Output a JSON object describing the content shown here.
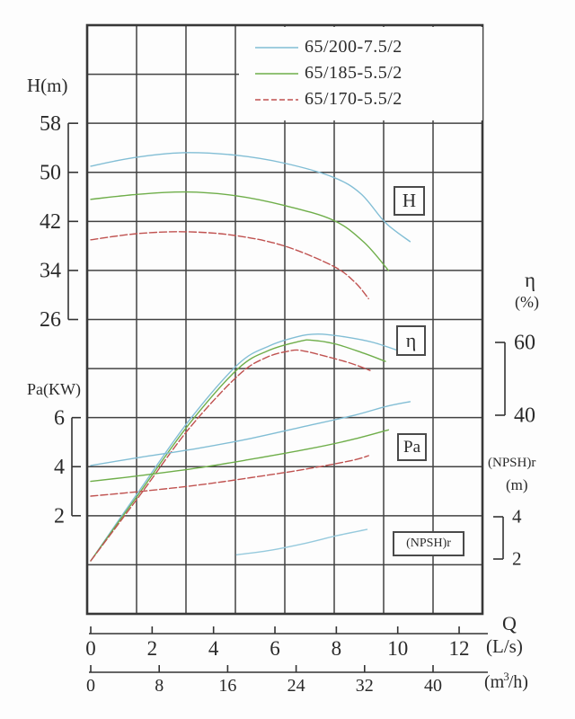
{
  "chart_data": {
    "type": "line",
    "title": "",
    "legend": [
      {
        "label": "65/200-7.5/2",
        "color": "#82bed5",
        "line_style": "solid"
      },
      {
        "label": "65/185-5.5/2",
        "color": "#6fae4a",
        "line_style": "solid"
      },
      {
        "label": "65/170-5.5/2",
        "color": "#c05250",
        "line_style": "dashed"
      }
    ],
    "x_axis": {
      "title": "Q",
      "unit": "(L/s)",
      "ticks": [
        0,
        2,
        4,
        6,
        8,
        10,
        12
      ],
      "range": [
        0,
        12.9
      ]
    },
    "x_axis_secondary": {
      "unit_open": "(m",
      "unit_sup": "3",
      "unit_close": "/h)",
      "ticks": [
        0,
        8,
        16,
        24,
        32,
        40
      ],
      "range": [
        0,
        46.4
      ]
    },
    "y_axes": {
      "H": {
        "title": "H(m)",
        "ticks": [
          58,
          50,
          42,
          34,
          26
        ]
      },
      "Pa": {
        "title": "Pa(KW)",
        "ticks": [
          6,
          4,
          2
        ]
      },
      "eta": {
        "title": "η",
        "unit": "(%)",
        "ticks": [
          60,
          40
        ]
      },
      "npsh": {
        "title": "(NPSH)r",
        "unit": "(m)",
        "ticks": [
          4,
          2
        ]
      }
    },
    "curve_labels": {
      "H": "H",
      "eta": "η",
      "Pa": "Pa",
      "npsh": "(NPSH)r"
    },
    "grid": {
      "columns": 8,
      "rows": 12,
      "on": true
    },
    "series": [
      {
        "name": "H 65/200-7.5/2",
        "pump": "65/200-7.5/2",
        "axis": "H",
        "color": "#82bed5",
        "dash": "solid",
        "points": [
          [
            0,
            51.0
          ],
          [
            1.4,
            52.4
          ],
          [
            3.0,
            53.2
          ],
          [
            4.7,
            52.8
          ],
          [
            6.3,
            51.5
          ],
          [
            7.9,
            49.2
          ],
          [
            8.8,
            46.5
          ],
          [
            9.6,
            41.8
          ],
          [
            10.4,
            38.7
          ]
        ]
      },
      {
        "name": "H 65/185-5.5/2",
        "pump": "65/185-5.5/2",
        "axis": "H",
        "color": "#6fae4a",
        "dash": "solid",
        "points": [
          [
            0,
            45.6
          ],
          [
            1.5,
            46.4
          ],
          [
            3.1,
            46.8
          ],
          [
            4.7,
            46.2
          ],
          [
            6.3,
            44.6
          ],
          [
            7.9,
            42.2
          ],
          [
            8.9,
            38.6
          ],
          [
            9.7,
            34.0
          ]
        ]
      },
      {
        "name": "H 65/170-5.5/2",
        "pump": "65/170-5.5/2",
        "axis": "H",
        "color": "#c05250",
        "dash": "dashed",
        "points": [
          [
            0,
            39.0
          ],
          [
            1.5,
            40.0
          ],
          [
            3.1,
            40.3
          ],
          [
            4.7,
            39.7
          ],
          [
            6.3,
            38.0
          ],
          [
            7.9,
            34.7
          ],
          [
            8.6,
            32.1
          ],
          [
            9.05,
            29.4
          ]
        ]
      },
      {
        "name": "η 65/200-7.5/2",
        "pump": "65/200-7.5/2",
        "axis": "eta",
        "color": "#82bed5",
        "dash": "solid",
        "points": [
          [
            0,
            0
          ],
          [
            1.6,
            19.5
          ],
          [
            3.2,
            38.5
          ],
          [
            4.8,
            54.0
          ],
          [
            5.8,
            59.0
          ],
          [
            6.7,
            61.5
          ],
          [
            7.4,
            62.3
          ],
          [
            8.3,
            61.5
          ],
          [
            9.2,
            60.0
          ],
          [
            10.2,
            57.2
          ]
        ]
      },
      {
        "name": "η 65/185-5.5/2",
        "pump": "65/185-5.5/2",
        "axis": "eta",
        "color": "#6fae4a",
        "dash": "solid",
        "points": [
          [
            0,
            0
          ],
          [
            1.6,
            18.8
          ],
          [
            3.2,
            37.5
          ],
          [
            4.8,
            52.8
          ],
          [
            5.8,
            57.8
          ],
          [
            6.8,
            60.3
          ],
          [
            7.2,
            60.6
          ],
          [
            8.0,
            59.5
          ],
          [
            8.9,
            57.0
          ],
          [
            9.6,
            54.8
          ]
        ]
      },
      {
        "name": "η 65/170-5.5/2",
        "pump": "65/170-5.5/2",
        "axis": "eta",
        "color": "#c05250",
        "dash": "dashed",
        "points": [
          [
            0,
            0
          ],
          [
            1.6,
            18.0
          ],
          [
            3.2,
            36.3
          ],
          [
            4.8,
            50.9
          ],
          [
            5.7,
            55.8
          ],
          [
            6.5,
            57.7
          ],
          [
            6.9,
            57.7
          ],
          [
            7.7,
            56.1
          ],
          [
            8.5,
            54.2
          ],
          [
            9.1,
            52.3
          ]
        ]
      },
      {
        "name": "Pa 65/200-7.5/2",
        "pump": "65/200-7.5/2",
        "axis": "Pa",
        "color": "#82bed5",
        "dash": "solid",
        "points": [
          [
            0,
            4.05
          ],
          [
            1.7,
            4.4
          ],
          [
            3.5,
            4.75
          ],
          [
            5.2,
            5.15
          ],
          [
            7.0,
            5.65
          ],
          [
            8.6,
            6.1
          ],
          [
            9.6,
            6.45
          ],
          [
            10.4,
            6.65
          ]
        ]
      },
      {
        "name": "Pa 65/185-5.5/2",
        "pump": "65/185-5.5/2",
        "axis": "Pa",
        "color": "#6fae4a",
        "dash": "solid",
        "points": [
          [
            0,
            3.4
          ],
          [
            1.7,
            3.65
          ],
          [
            3.5,
            3.95
          ],
          [
            5.2,
            4.3
          ],
          [
            7.0,
            4.7
          ],
          [
            8.5,
            5.1
          ],
          [
            9.7,
            5.5
          ]
        ]
      },
      {
        "name": "Pa 65/170-5.5/2",
        "pump": "65/170-5.5/2",
        "axis": "Pa",
        "color": "#c05250",
        "dash": "dashed",
        "points": [
          [
            0,
            2.8
          ],
          [
            1.7,
            3.0
          ],
          [
            3.5,
            3.25
          ],
          [
            5.2,
            3.55
          ],
          [
            7.0,
            3.9
          ],
          [
            8.5,
            4.25
          ],
          [
            9.05,
            4.45
          ]
        ]
      },
      {
        "name": "(NPSH)r 65/200-7.5/2",
        "pump": "65/200-7.5/2",
        "axis": "npsh",
        "color": "#96cadd",
        "dash": "solid",
        "points": [
          [
            4.75,
            2.2
          ],
          [
            5.8,
            2.4
          ],
          [
            7.0,
            2.75
          ],
          [
            8.0,
            3.1
          ],
          [
            9.0,
            3.4
          ]
        ]
      }
    ]
  }
}
